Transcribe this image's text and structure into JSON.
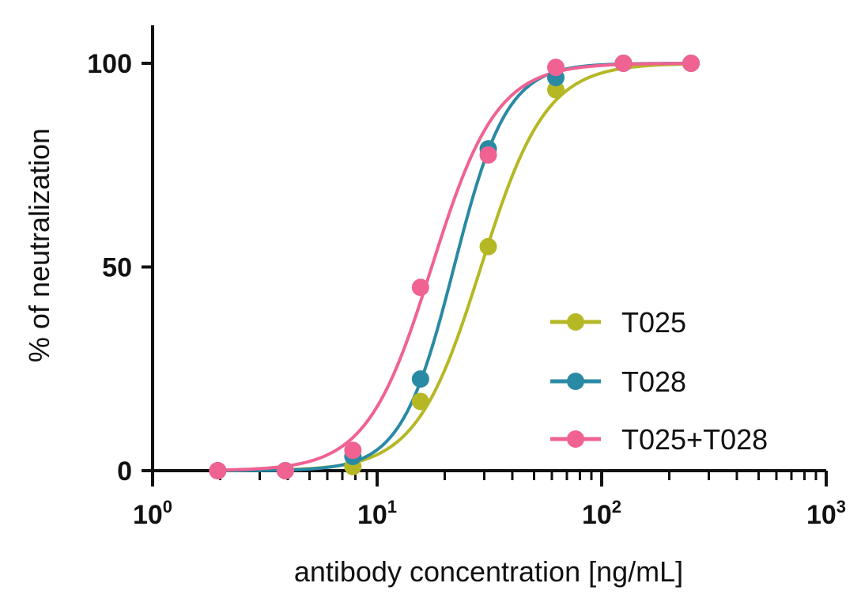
{
  "chart_data": {
    "type": "line",
    "xscale": "log",
    "xlim": [
      1,
      1000
    ],
    "ylim": [
      0,
      110
    ],
    "xlabel": "antibody concentration [ng/mL]",
    "ylabel": "% of neutralization",
    "x_ticks": [
      {
        "value": 1,
        "base": "10",
        "exp": "0"
      },
      {
        "value": 10,
        "base": "10",
        "exp": "1"
      },
      {
        "value": 100,
        "base": "10",
        "exp": "2"
      },
      {
        "value": 1000,
        "base": "10",
        "exp": "3"
      }
    ],
    "y_ticks": [
      {
        "value": 0,
        "label": "0"
      },
      {
        "value": 50,
        "label": "50"
      },
      {
        "value": 100,
        "label": "100"
      }
    ],
    "legend_position": "bottom-right",
    "series": [
      {
        "name": "T025",
        "color": "#b5b824",
        "x": [
          1.95,
          3.9,
          7.8,
          15.6,
          31.25,
          62.5,
          125,
          250
        ],
        "y": [
          0,
          0,
          1,
          17,
          55,
          93.5,
          100,
          100
        ],
        "ec50": 29,
        "hill": 3.0
      },
      {
        "name": "T028",
        "color": "#2a8aa4",
        "x": [
          1.95,
          3.9,
          7.8,
          15.6,
          31.25,
          62.5,
          125,
          250
        ],
        "y": [
          0,
          0,
          3.5,
          22.5,
          79,
          96.5,
          100,
          100
        ],
        "ec50": 22,
        "hill": 3.7
      },
      {
        "name": "T025+T028",
        "color": "#f06292",
        "x": [
          1.95,
          3.9,
          7.8,
          15.6,
          31.25,
          62.5,
          125,
          250
        ],
        "y": [
          0,
          0,
          5,
          45,
          77.5,
          99,
          100,
          100
        ],
        "ec50": 17.5,
        "hill": 3.0
      }
    ]
  }
}
